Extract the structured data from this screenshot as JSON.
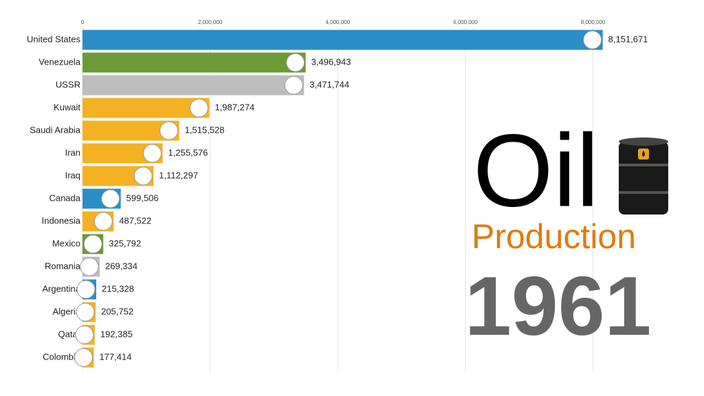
{
  "chart_data": {
    "type": "bar",
    "orientation": "horizontal",
    "title": "Oil",
    "subtitle": "Production",
    "annotation": "1961",
    "categories": [
      "United States",
      "Venezuela",
      "USSR",
      "Kuwait",
      "Saudi Arabia",
      "Iran",
      "Iraq",
      "Canada",
      "Indonesia",
      "Mexico",
      "Romania",
      "Argentina",
      "Algeria",
      "Qatar",
      "Colombia"
    ],
    "values": [
      8151671,
      3496943,
      3471744,
      1987274,
      1515528,
      1255576,
      1112297,
      599506,
      487522,
      325792,
      269334,
      215328,
      205752,
      192385,
      177414
    ],
    "value_labels": [
      "8,151,671",
      "3,496,943",
      "3,471,744",
      "1,987,274",
      "1,515,528",
      "1,255,576",
      "1,112,297",
      "599,506",
      "487,522",
      "325,792",
      "269,334",
      "215,328",
      "205,752",
      "192,385",
      "177,414"
    ],
    "colors": [
      "#2b8ec6",
      "#6b9b37",
      "#bdbdbd",
      "#f4b223",
      "#f4b223",
      "#f4b223",
      "#f4b223",
      "#2b8ec6",
      "#f4b223",
      "#6b9b37",
      "#bdbdbd",
      "#2b8ec6",
      "#f4b223",
      "#f4b223",
      "#f4b223"
    ],
    "xlim": [
      0,
      8500000
    ],
    "xticks": [
      0,
      {
        "value": 2000000,
        "label": "2,000,000"
      },
      {
        "value": 4000000,
        "label": "4,000,000"
      },
      {
        "value": 6000000,
        "label": "6,000,000"
      },
      {
        "value": 8000000,
        "label": "8,000,000"
      }
    ],
    "grid": true
  }
}
